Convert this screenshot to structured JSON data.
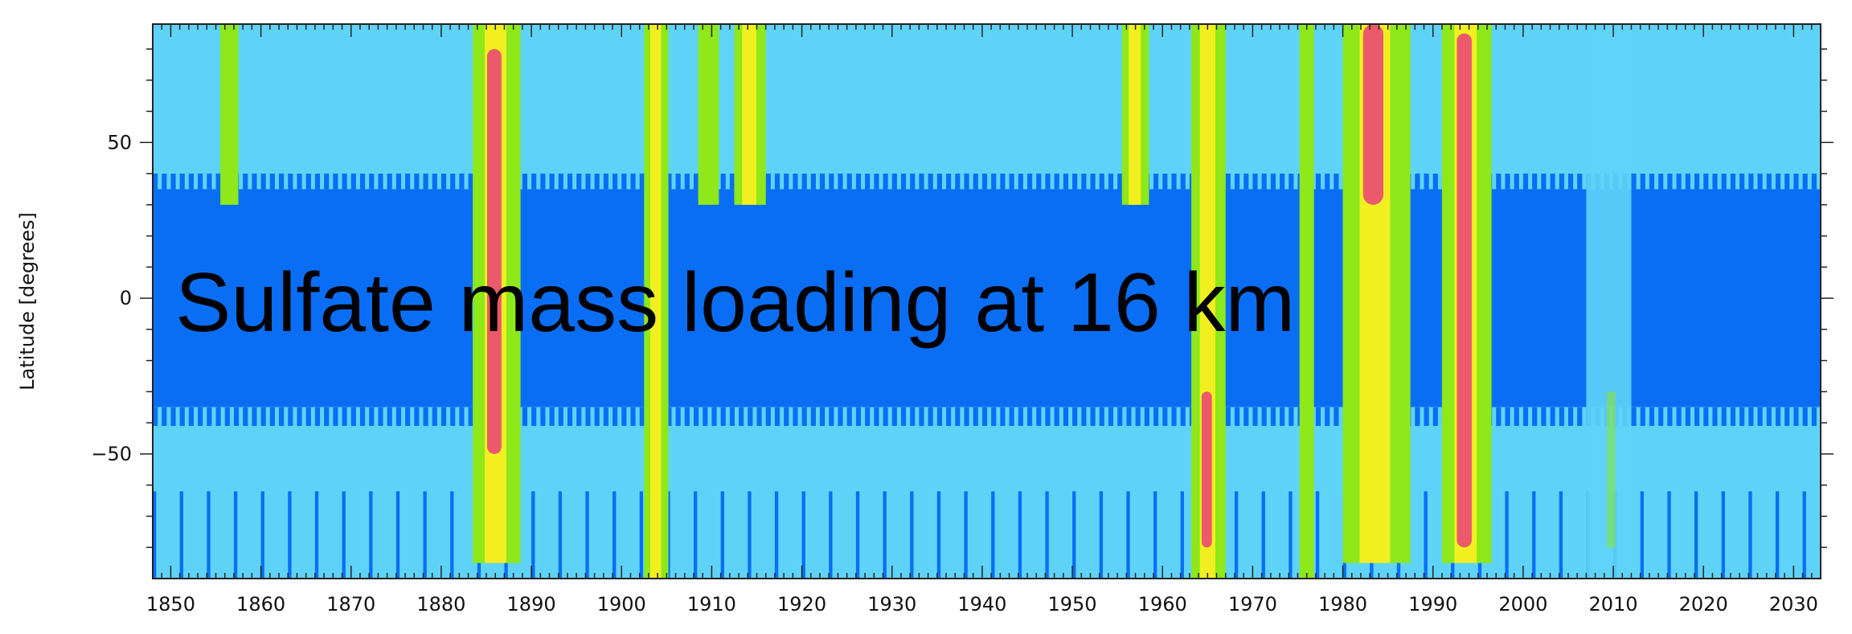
{
  "chart_data": {
    "type": "heatmap",
    "title": "Sulfate mass loading at 16 km",
    "xlabel": "",
    "ylabel": "Latitude [degrees]",
    "xlim": [
      1848,
      2033
    ],
    "ylim": [
      -90,
      88
    ],
    "x_ticks": [
      1850,
      1860,
      1870,
      1880,
      1890,
      1900,
      1910,
      1920,
      1930,
      1940,
      1950,
      1960,
      1970,
      1980,
      1990,
      2000,
      2010,
      2020,
      2030
    ],
    "y_ticks": [
      -50,
      0,
      50
    ],
    "background_bands": [
      {
        "lat_range": [
          35,
          88
        ],
        "level": "low",
        "color": "#5fd3f7"
      },
      {
        "lat_range": [
          -35,
          35
        ],
        "level": "very_low",
        "color": "#0a6ef5"
      },
      {
        "lat_range": [
          -90,
          -35
        ],
        "level": "low",
        "color": "#5fd3f7"
      }
    ],
    "colors": {
      "very_low": "#0a6ef5",
      "low": "#5fd3f7",
      "medium": "#8ee81a",
      "high": "#f2ef21",
      "very_high": "#ea5a6b"
    },
    "events": [
      {
        "x_start": 1855.5,
        "x_end": 1857.5,
        "lat_range": [
          30,
          88
        ],
        "peak_level": "medium"
      },
      {
        "x_start": 1883.5,
        "x_end": 1888.8,
        "lat_range": [
          -85,
          88
        ],
        "peak_level": "very_high",
        "peak_lat": [
          -50,
          80
        ]
      },
      {
        "x_start": 1902.5,
        "x_end": 1905.2,
        "lat_range": [
          -90,
          88
        ],
        "peak_level": "high"
      },
      {
        "x_start": 1908.5,
        "x_end": 1910.8,
        "lat_range": [
          30,
          88
        ],
        "peak_level": "medium"
      },
      {
        "x_start": 1912.5,
        "x_end": 1916.0,
        "lat_range": [
          30,
          88
        ],
        "peak_level": "high"
      },
      {
        "x_start": 1955.5,
        "x_end": 1958.5,
        "lat_range": [
          30,
          88
        ],
        "peak_level": "high"
      },
      {
        "x_start": 1963.2,
        "x_end": 1967.0,
        "lat_range": [
          -90,
          88
        ],
        "peak_level": "very_high",
        "peak_lat": [
          -80,
          -30
        ]
      },
      {
        "x_start": 1975.2,
        "x_end": 1976.8,
        "lat_range": [
          -90,
          88
        ],
        "peak_level": "medium"
      },
      {
        "x_start": 1980.0,
        "x_end": 1987.5,
        "lat_range": [
          -85,
          88
        ],
        "peak_level": "very_high",
        "peak_lat": [
          30,
          88
        ]
      },
      {
        "x_start": 1991.0,
        "x_end": 1996.5,
        "lat_range": [
          -85,
          88
        ],
        "peak_level": "very_high",
        "peak_lat": [
          -80,
          85
        ]
      },
      {
        "x_start": 2007.0,
        "x_end": 2012.0,
        "lat_range": [
          -90,
          88
        ],
        "peak_level": "low_medium"
      }
    ]
  }
}
